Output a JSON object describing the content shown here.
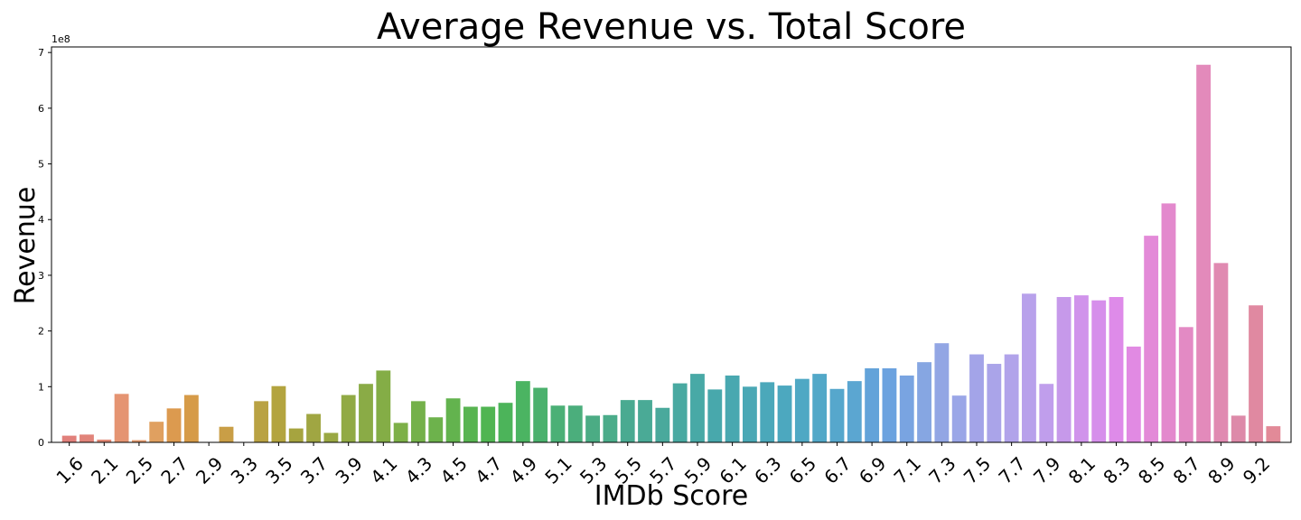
{
  "chart_data": {
    "type": "bar",
    "title": "Average Revenue vs. Total Score",
    "xlabel": "IMDb Score",
    "ylabel": "Revenue",
    "y_offset_label": "1e8",
    "ylim": [
      0,
      7.1
    ],
    "yticks": [
      0,
      1,
      2,
      3,
      4,
      5,
      6,
      7
    ],
    "grid": false,
    "categories": [
      "1.6",
      "1.9",
      "2.1",
      "2.3",
      "2.5",
      "2.6",
      "2.7",
      "2.8",
      "2.9",
      "3.0",
      "3.3",
      "3.4",
      "3.5",
      "3.6",
      "3.7",
      "3.8",
      "3.9",
      "4.0",
      "4.1",
      "4.2",
      "4.3",
      "4.4",
      "4.5",
      "4.6",
      "4.7",
      "4.8",
      "4.9",
      "5.0",
      "5.1",
      "5.2",
      "5.3",
      "5.4",
      "5.5",
      "5.6",
      "5.7",
      "5.8",
      "5.9",
      "6.0",
      "6.1",
      "6.2",
      "6.3",
      "6.4",
      "6.5",
      "6.6",
      "6.7",
      "6.8",
      "6.9",
      "7.0",
      "7.1",
      "7.2",
      "7.3",
      "7.4",
      "7.5",
      "7.6",
      "7.7",
      "7.8",
      "7.9",
      "8.0",
      "8.1",
      "8.2",
      "8.3",
      "8.4",
      "8.5",
      "8.6",
      "8.7",
      "8.8",
      "8.9",
      "9.0",
      "9.2",
      "9.3"
    ],
    "values": [
      0.12,
      0.14,
      0.05,
      0.87,
      0.04,
      0.37,
      0.61,
      0.85,
      0.0,
      0.28,
      0.0,
      0.74,
      1.01,
      0.25,
      0.51,
      0.17,
      0.85,
      1.05,
      1.29,
      0.35,
      0.74,
      0.45,
      0.79,
      0.64,
      0.64,
      0.71,
      1.1,
      0.98,
      0.66,
      0.66,
      0.48,
      0.49,
      0.76,
      0.76,
      0.62,
      1.06,
      1.23,
      0.95,
      1.2,
      1.0,
      1.08,
      1.02,
      1.14,
      1.23,
      0.96,
      1.1,
      1.33,
      1.33,
      1.2,
      1.44,
      1.78,
      0.84,
      1.58,
      1.41,
      1.58,
      2.67,
      1.05,
      2.61,
      2.64,
      2.55,
      2.61,
      1.72,
      3.71,
      4.29,
      2.07,
      6.78,
      3.22,
      0.48,
      2.46,
      0.29
    ],
    "colors": [
      "#e1807b",
      "#e1847a",
      "#e18875",
      "#e59472",
      "#e49a6e",
      "#e0a060",
      "#dc9a4f",
      "#d69b48",
      "#cf9c48",
      "#c99e46",
      "#bfa045",
      "#b9a243",
      "#b3a43f",
      "#a6a43f",
      "#a0a642",
      "#9aa843",
      "#91aa44",
      "#8aab46",
      "#84ad46",
      "#7db048",
      "#74b14a",
      "#6db24c",
      "#63b34e",
      "#58b451",
      "#50b552",
      "#4cb45a",
      "#4bb462",
      "#4bb16d",
      "#4bb076",
      "#4bae7c",
      "#4bac84",
      "#4bac8a",
      "#4aaa91",
      "#4aaa96",
      "#4aa99c",
      "#49a9a1",
      "#48a9a6",
      "#48a8ac",
      "#49a8b0",
      "#4aa8b5",
      "#4ba8ba",
      "#4ca8bf",
      "#4fa8c4",
      "#52a8c8",
      "#56a7cc",
      "#5ba6d1",
      "#63a3d9",
      "#6ba2df",
      "#79a4e1",
      "#86a6e2",
      "#92a6e4",
      "#9aa6e7",
      "#a3a4e8",
      "#aaa4e9",
      "#b1a3ea",
      "#b8a1eb",
      "#c09eec",
      "#c699ea",
      "#d093eb",
      "#d68feb",
      "#de8be9",
      "#e18ae3",
      "#e38ad8",
      "#e389cd",
      "#e38ac4",
      "#e38abb",
      "#e08ab1",
      "#dd8aa9",
      "#e089a1",
      "#e28a98"
    ],
    "visible_xtick_labels": [
      "1.6",
      "2.1",
      "2.5",
      "2.7",
      "2.9",
      "3.3",
      "3.5",
      "3.7",
      "3.9",
      "4.1",
      "4.3",
      "4.5",
      "4.7",
      "4.9",
      "5.1",
      "5.3",
      "5.5",
      "5.7",
      "5.9",
      "6.1",
      "6.3",
      "6.5",
      "6.7",
      "6.9",
      "7.1",
      "7.3",
      "7.5",
      "7.7",
      "7.9",
      "8.1",
      "8.3",
      "8.5",
      "8.7",
      "8.9",
      "9.2"
    ]
  }
}
